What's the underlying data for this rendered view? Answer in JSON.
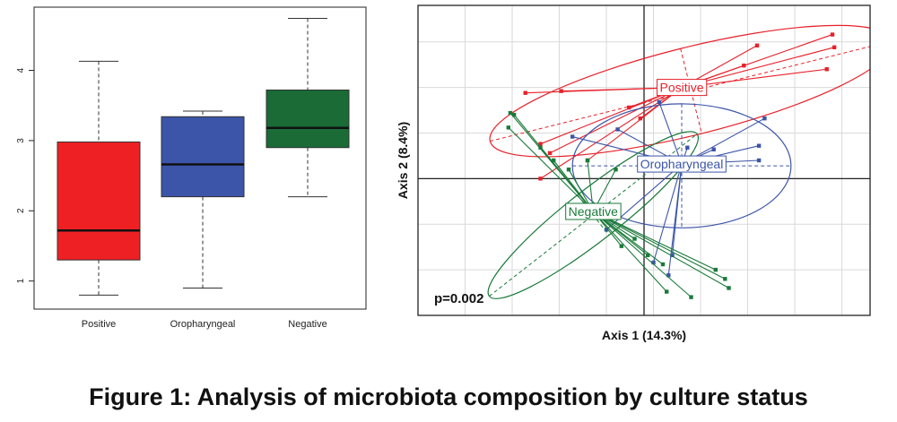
{
  "figure_caption": "Figure 1: Analysis of microbiota composition by culture status",
  "chart_data": [
    {
      "type": "boxplot",
      "title": "",
      "xlabel": "",
      "ylabel": "",
      "ylim": [
        0.6,
        4.9
      ],
      "y_ticks": [
        1,
        2,
        3,
        4
      ],
      "grid": false,
      "categories": [
        "Positive",
        "Oropharyngeal",
        "Negative"
      ],
      "colors": [
        "#ee2024",
        "#3c55a8",
        "#1a6b36"
      ],
      "boxes": [
        {
          "name": "Positive",
          "min": 0.8,
          "q1": 1.3,
          "median": 1.72,
          "q3": 2.98,
          "max": 4.13
        },
        {
          "name": "Oropharyngeal",
          "min": 0.9,
          "q1": 2.2,
          "median": 2.66,
          "q3": 3.34,
          "max": 3.42
        },
        {
          "name": "Negative",
          "min": 2.2,
          "q1": 2.9,
          "median": 3.18,
          "q3": 3.72,
          "max": 4.74
        }
      ]
    },
    {
      "type": "scatter",
      "title": "",
      "xlabel": "Axis 1 (14.3%)",
      "ylabel": "Axis 2 (8.4%)",
      "xlim": [
        -1.2,
        1.2
      ],
      "ylim": [
        -0.75,
        0.95
      ],
      "grid": true,
      "annotation": "p=0.002",
      "series": [
        {
          "name": "Positive",
          "color": "#e8202a",
          "centroid": [
            0.2,
            0.5
          ],
          "ellipse": {
            "cx": 0.25,
            "cy": 0.48,
            "rx": 1.1,
            "ry": 0.24,
            "angle_deg": 14
          },
          "points": [
            [
              1.0,
              0.79
            ],
            [
              1.01,
              0.72
            ],
            [
              0.97,
              0.6
            ],
            [
              0.6,
              0.73
            ],
            [
              0.53,
              0.62
            ],
            [
              -0.63,
              0.47
            ],
            [
              -0.44,
              0.48
            ],
            [
              -0.08,
              0.39
            ],
            [
              -0.02,
              0.33
            ],
            [
              -0.55,
              0.19
            ],
            [
              -0.5,
              0.14
            ],
            [
              -0.3,
              0.1
            ],
            [
              -0.55,
              0.0
            ]
          ]
        },
        {
          "name": "Oropharyngeal",
          "color": "#3c55a8",
          "centroid": [
            0.2,
            0.08
          ],
          "ellipse": {
            "cx": 0.2,
            "cy": 0.07,
            "rx": 0.58,
            "ry": 0.34,
            "angle_deg": 0
          },
          "points": [
            [
              0.64,
              0.33
            ],
            [
              0.61,
              0.18
            ],
            [
              0.61,
              0.1
            ],
            [
              0.37,
              0.16
            ],
            [
              0.23,
              0.17
            ],
            [
              -0.14,
              0.27
            ],
            [
              -0.38,
              0.23
            ],
            [
              0.08,
              0.42
            ],
            [
              0.15,
              -0.42
            ],
            [
              0.13,
              -0.53
            ],
            [
              0.05,
              -0.46
            ],
            [
              -0.2,
              -0.28
            ]
          ]
        },
        {
          "name": "Negative",
          "color": "#1a7a3a",
          "centroid": [
            -0.27,
            -0.18
          ],
          "ellipse": {
            "cx": -0.27,
            "cy": -0.2,
            "rx": 0.7,
            "ry": 0.14,
            "angle_deg": 38
          },
          "points": [
            [
              -0.71,
              0.36
            ],
            [
              -0.69,
              0.35
            ],
            [
              -0.72,
              0.28
            ],
            [
              -0.55,
              0.17
            ],
            [
              -0.48,
              0.1
            ],
            [
              -0.4,
              0.05
            ],
            [
              -0.3,
              0.1
            ],
            [
              -0.15,
              0.05
            ],
            [
              -0.12,
              -0.37
            ],
            [
              -0.05,
              -0.33
            ],
            [
              0.02,
              -0.42
            ],
            [
              0.1,
              -0.47
            ],
            [
              0.38,
              -0.5
            ],
            [
              0.43,
              -0.55
            ],
            [
              0.45,
              -0.6
            ],
            [
              0.25,
              -0.65
            ],
            [
              0.12,
              -0.62
            ]
          ]
        }
      ]
    }
  ]
}
